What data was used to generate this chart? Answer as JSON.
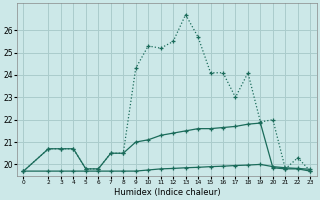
{
  "xlabel": "Humidex (Indice chaleur)",
  "bg_color": "#cce8e8",
  "grid_color": "#aacccc",
  "line_color": "#1a6b5a",
  "xlim": [
    -0.5,
    23.5
  ],
  "ylim": [
    19.5,
    27.2
  ],
  "yticks": [
    20,
    21,
    22,
    23,
    24,
    25,
    26
  ],
  "xtick_positions": [
    0,
    2,
    3,
    4,
    5,
    6,
    7,
    8,
    9,
    10,
    11,
    12,
    13,
    14,
    15,
    16,
    17,
    18,
    19,
    20,
    21,
    22,
    23
  ],
  "xtick_labels": [
    "0",
    "2",
    "3",
    "4",
    "5",
    "6",
    "7",
    "8",
    "9",
    "10",
    "11",
    "12",
    "13",
    "14",
    "15",
    "16",
    "17",
    "18",
    "19",
    "20",
    "21",
    "22",
    "23"
  ],
  "series1_x": [
    0,
    2,
    3,
    4,
    5,
    6,
    7,
    8,
    9,
    10,
    11,
    12,
    13,
    14,
    15,
    16,
    17,
    18,
    19,
    20,
    21,
    22,
    23
  ],
  "series1_y": [
    19.7,
    20.7,
    20.7,
    20.7,
    19.8,
    19.8,
    20.5,
    20.5,
    24.3,
    25.3,
    25.2,
    25.5,
    26.7,
    25.7,
    24.1,
    24.1,
    23.0,
    24.1,
    21.9,
    22.0,
    19.8,
    20.3,
    19.7
  ],
  "series2_x": [
    0,
    2,
    3,
    4,
    5,
    6,
    7,
    8,
    9,
    10,
    11,
    12,
    13,
    14,
    15,
    16,
    17,
    18,
    19,
    20,
    21,
    22,
    23
  ],
  "series2_y": [
    19.7,
    20.7,
    20.7,
    20.7,
    19.8,
    19.8,
    20.5,
    20.5,
    21.0,
    21.1,
    21.3,
    21.4,
    21.5,
    21.6,
    21.6,
    21.65,
    21.7,
    21.8,
    21.85,
    19.85,
    19.8,
    19.8,
    19.7
  ],
  "series3_x": [
    0,
    2,
    3,
    4,
    5,
    6,
    7,
    8,
    9,
    10,
    11,
    12,
    13,
    14,
    15,
    16,
    17,
    18,
    19,
    20,
    21,
    22,
    23
  ],
  "series3_y": [
    19.7,
    19.7,
    19.7,
    19.7,
    19.7,
    19.7,
    19.7,
    19.7,
    19.7,
    19.75,
    19.8,
    19.82,
    19.85,
    19.87,
    19.9,
    19.92,
    19.95,
    19.97,
    20.0,
    19.9,
    19.85,
    19.82,
    19.78
  ]
}
